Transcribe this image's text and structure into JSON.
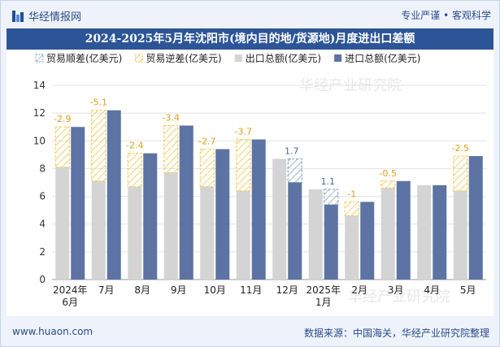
{
  "header": {
    "brand": "华经情报网",
    "tagline": "专业严谨 • 客观科学"
  },
  "title": "2024-2025年5月年沈阳市(境内目的地/货源地)月度进出口差额",
  "footer": {
    "website": "www.huaon.com",
    "source": "数据来源：中国海关，华经产业研究院整理"
  },
  "watermark": "华经产业研究院",
  "colors": {
    "exports": "#d4d4d4",
    "imports": "#5c73a3",
    "surplus": "#7a9ab2",
    "deficit": "#f2c64c",
    "title_bg": "#2c5597"
  },
  "chart_data": {
    "type": "bar",
    "categories": [
      "2024年6月",
      "7月",
      "8月",
      "9月",
      "10月",
      "11月",
      "12月",
      "2025年1月",
      "2月",
      "3月",
      "4月",
      "5月"
    ],
    "ylim": [
      0,
      14
    ],
    "yticks": [
      0,
      2,
      4,
      6,
      8,
      10,
      12,
      14
    ],
    "grid": true,
    "legend_position": "top",
    "series": [
      {
        "name": "出口总额(亿美元)",
        "values": [
          8.1,
          7.1,
          6.7,
          7.7,
          6.7,
          6.4,
          8.7,
          6.5,
          4.6,
          6.6,
          6.8,
          6.4
        ]
      },
      {
        "name": "进口总额(亿美元)",
        "values": [
          11.0,
          12.2,
          9.1,
          11.1,
          9.4,
          10.1,
          7.0,
          5.4,
          5.6,
          7.1,
          6.8,
          8.9
        ]
      }
    ],
    "balance": {
      "surplus_name": "贸易顺差(亿美元)",
      "deficit_name": "贸易逆差(亿美元)",
      "values": [
        -2.9,
        -5.1,
        -2.4,
        -3.4,
        -2.7,
        -3.7,
        1.7,
        1.1,
        -1,
        -0.5,
        null,
        -2.5
      ],
      "labels": [
        "-2.9",
        "-5.1",
        "-2.4",
        "-3.4",
        "-2.7",
        "-3.7",
        "1.7",
        "1.1",
        "-1",
        "-0.5",
        "",
        "-2.5"
      ]
    }
  }
}
